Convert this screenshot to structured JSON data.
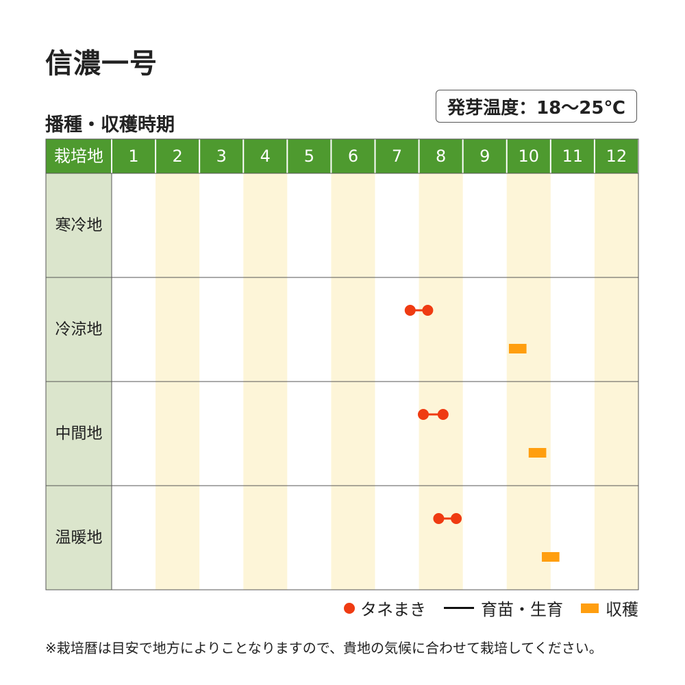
{
  "title": "信濃一号",
  "subtitle": "播種・収穫時期",
  "temperature_label": "発芽温度：18～25℃",
  "note": "※栽培暦は目安で地方によりことなりますので、貴地の気候に合わせて栽培してください。",
  "legend": {
    "sowing": "タネまき",
    "nursery": "育苗・生育",
    "harvest": "収穫"
  },
  "colors": {
    "header_green": "#4e9a2f",
    "region_cell": "#dbe5cc",
    "stripe": "#fdf5d8",
    "sowing": "#ef3b12",
    "harvest": "#ff9e0f"
  },
  "chart_data": {
    "type": "table",
    "header_label": "栽培地",
    "months": [
      "1",
      "2",
      "3",
      "4",
      "5",
      "6",
      "7",
      "8",
      "9",
      "10",
      "11",
      "12"
    ],
    "regions": [
      {
        "name": "寒冷地",
        "sowing": null,
        "harvest": null
      },
      {
        "name": "冷涼地",
        "sowing": [
          7.8,
          8.2
        ],
        "harvest": [
          10.05,
          10.45
        ]
      },
      {
        "name": "中間地",
        "sowing": [
          8.1,
          8.55
        ],
        "harvest": [
          10.5,
          10.9
        ]
      },
      {
        "name": "温暖地",
        "sowing": [
          8.45,
          8.85
        ],
        "harvest": [
          10.8,
          11.2
        ]
      }
    ]
  }
}
